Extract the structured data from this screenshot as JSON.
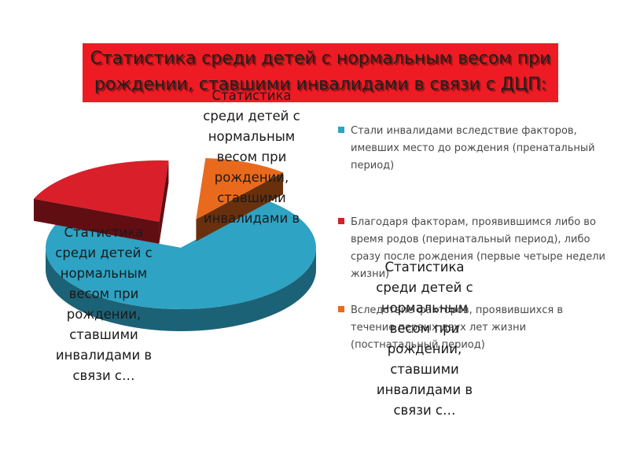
{
  "chart_data": {
    "type": "pie",
    "title": "Статистика среди детей с нормальным весом при рождении, ставшими инвалидами в связи с ДЦП:",
    "series": [
      {
        "name": "Стали инвалидами вследствие факторов, имевших место до рождения (пренатальный период)",
        "value": 70,
        "color": "#2ea3c4"
      },
      {
        "name": "Благодаря факторам, проявившимся либо во время родов (перинатальный период), либо сразу после рождения (первые четыре недели жизни)",
        "value": 20,
        "color": "#d81f2a"
      },
      {
        "name": "Вследствие факторов, проявившихся в течение первых двух лет жизни (постнатальный период)",
        "value": 10,
        "color": "#ea6a1d"
      }
    ],
    "data_labels": [
      "Статистика среди детей с нормальным весом при рождении, ставшими инвалидами в связи с…",
      "Статистика среди детей с нормальным весом при рождении, ставшими инвалидами в связи с…",
      "Статистика среди детей с нормальным весом при рождении, ставшими инвалидами в связи с…"
    ],
    "legend_position": "right",
    "style": "3d-exploded"
  }
}
